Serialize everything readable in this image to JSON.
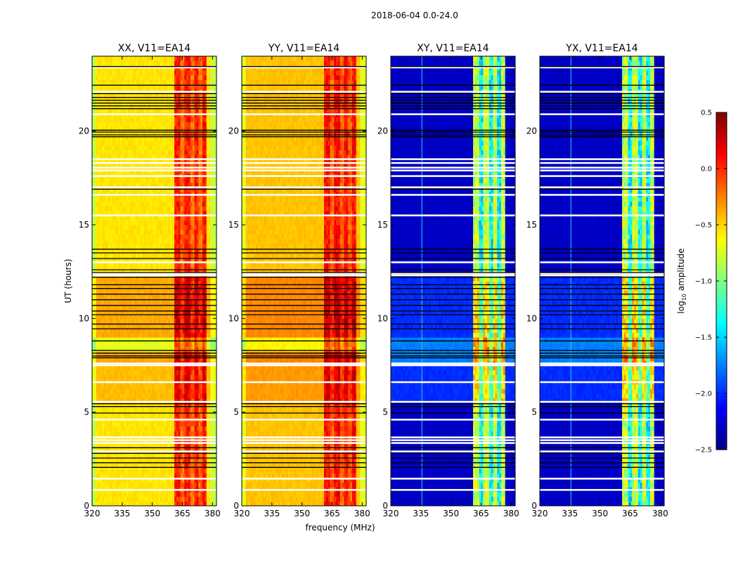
{
  "figure": {
    "suptitle": "2018-06-04 0.0-24.0",
    "xlabel": "frequency (MHz)",
    "ylabel": "UT (hours)",
    "colorbar_label_main": "log",
    "colorbar_label_sub": "10",
    "colorbar_label_rest": " amplitude"
  },
  "chart_data": {
    "type": "heatmap",
    "title": "2018-06-04 0.0-24.0",
    "xlabel": "frequency (MHz)",
    "ylabel": "UT (hours)",
    "xlim": [
      320,
      382
    ],
    "ylim": [
      0,
      24
    ],
    "xticks": [
      320,
      335,
      350,
      365,
      380
    ],
    "yticks": [
      0,
      5,
      10,
      15,
      20
    ],
    "colormap": "jet",
    "colorbar": {
      "label": "log10 amplitude",
      "range": [
        -2.5,
        0.5
      ],
      "ticks": [
        0.5,
        0.0,
        -0.5,
        -1.0,
        -1.5,
        -2.0,
        -2.5
      ],
      "tick_labels": [
        "0.5",
        "0.0",
        "−0.5",
        "−1.0",
        "−1.5",
        "−2.0",
        "−2.5"
      ],
      "placement": "right"
    },
    "panels": [
      {
        "title": "XX, V11=EA14",
        "polarization": "XX",
        "base_level": -0.55,
        "band_level": 0.05,
        "kind": "parallel"
      },
      {
        "title": "YY, V11=EA14",
        "polarization": "YY",
        "base_level": -0.45,
        "band_level": 0.1,
        "kind": "parallel"
      },
      {
        "title": "XY, V11=EA14",
        "polarization": "XY",
        "base_level": -2.3,
        "band_level": -0.8,
        "kind": "cross"
      },
      {
        "title": "YX, V11=EA14",
        "polarization": "YX",
        "base_level": -2.3,
        "band_level": -0.8,
        "kind": "cross"
      }
    ],
    "bright_band_mhz": [
      361,
      377
    ],
    "band_gaps_mhz": [
      365,
      370,
      374
    ],
    "flagged_rows_white_ut": [
      0.85,
      1.45,
      2.9,
      3.35,
      3.5,
      3.65,
      4.6,
      5.55,
      6.6,
      7.5,
      7.6,
      12.3,
      12.4,
      13.0,
      15.5,
      16.6,
      17.0,
      17.6,
      17.9,
      18.05,
      18.3,
      18.5,
      20.9,
      22.1,
      23.4
    ],
    "flagged_rows_black_ut": [
      2.05,
      2.3,
      2.55,
      2.8,
      3.1,
      4.95,
      5.3,
      5.45,
      7.9,
      8.0,
      8.15,
      8.3,
      8.8,
      9.45,
      9.7,
      10.2,
      10.4,
      10.7,
      11.0,
      11.3,
      11.6,
      11.8,
      12.2,
      12.45,
      12.6,
      13.2,
      13.5,
      13.7,
      16.9,
      19.7,
      19.8,
      19.95,
      20.05,
      21.2,
      21.35,
      21.5,
      21.65,
      21.8,
      22.0,
      22.45,
      23.45
    ]
  }
}
